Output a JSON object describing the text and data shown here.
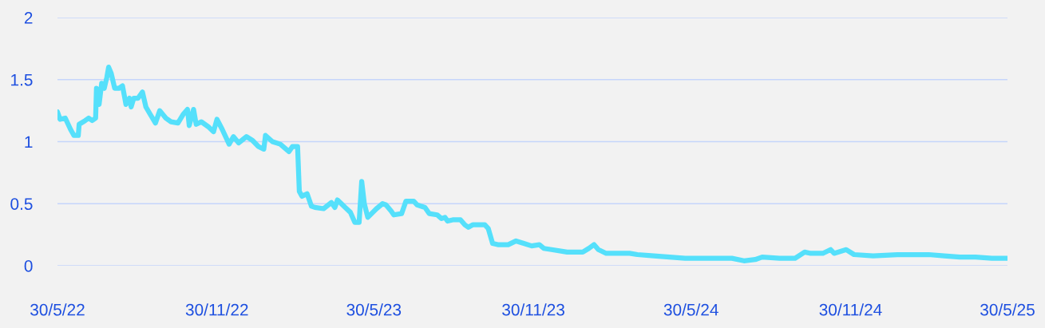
{
  "chart_data": {
    "type": "line",
    "x": [
      "2022-05-30",
      "2022-06-02",
      "2022-06-08",
      "2022-06-14",
      "2022-06-18",
      "2022-06-23",
      "2022-06-24",
      "2022-07-01",
      "2022-07-05",
      "2022-07-09",
      "2022-07-13",
      "2022-07-14",
      "2022-07-17",
      "2022-07-20",
      "2022-07-23",
      "2022-07-26",
      "2022-07-28",
      "2022-07-31",
      "2022-08-04",
      "2022-08-09",
      "2022-08-13",
      "2022-08-17",
      "2022-08-21",
      "2022-08-23",
      "2022-08-26",
      "2022-08-31",
      "2022-09-05",
      "2022-09-09",
      "2022-09-14",
      "2022-09-20",
      "2022-09-25",
      "2022-10-02",
      "2022-10-08",
      "2022-10-16",
      "2022-10-22",
      "2022-10-27",
      "2022-10-29",
      "2022-11-03",
      "2022-11-06",
      "2022-11-12",
      "2022-11-20",
      "2022-11-26",
      "2022-11-30",
      "2022-12-06",
      "2022-12-14",
      "2022-12-19",
      "2022-12-25",
      "2023-01-03",
      "2023-01-10",
      "2023-01-17",
      "2023-01-23",
      "2023-01-25",
      "2023-02-02",
      "2023-02-11",
      "2023-02-21",
      "2023-02-25",
      "2023-03-03",
      "2023-03-05",
      "2023-03-08",
      "2023-03-14",
      "2023-03-19",
      "2023-03-23",
      "2023-04-02",
      "2023-04-11",
      "2023-04-15",
      "2023-04-18",
      "2023-04-27",
      "2023-05-03",
      "2023-05-08",
      "2023-05-13",
      "2023-05-16",
      "2023-05-19",
      "2023-05-23",
      "2023-06-02",
      "2023-06-09",
      "2023-06-13",
      "2023-06-19",
      "2023-06-22",
      "2023-07-01",
      "2023-07-06",
      "2023-07-15",
      "2023-07-19",
      "2023-07-28",
      "2023-08-02",
      "2023-08-11",
      "2023-08-16",
      "2023-08-20",
      "2023-08-23",
      "2023-08-29",
      "2023-09-07",
      "2023-09-12",
      "2023-09-16",
      "2023-09-21",
      "2023-10-05",
      "2023-10-09",
      "2023-10-14",
      "2023-10-20",
      "2023-11-01",
      "2023-11-10",
      "2023-11-19",
      "2023-11-28",
      "2023-12-07",
      "2023-12-12",
      "2023-12-21",
      "2024-01-08",
      "2024-01-26",
      "2024-02-02",
      "2024-02-08",
      "2024-02-13",
      "2024-02-22",
      "2024-03-20",
      "2024-03-29",
      "2024-04-17",
      "2024-05-05",
      "2024-05-23",
      "2024-06-19",
      "2024-07-16",
      "2024-07-30",
      "2024-08-12",
      "2024-08-20",
      "2024-09-09",
      "2024-09-27",
      "2024-10-08",
      "2024-10-15",
      "2024-10-29",
      "2024-11-07",
      "2024-11-11",
      "2024-11-25",
      "2024-12-04",
      "2024-12-26",
      "2025-01-23",
      "2025-02-28",
      "2025-03-18",
      "2025-04-05",
      "2025-04-23",
      "2025-05-12",
      "2025-05-30"
    ],
    "series": [
      {
        "color": "#55e0fb",
        "values": [
          1.24,
          1.18,
          1.19,
          1.1,
          1.05,
          1.05,
          1.14,
          1.17,
          1.19,
          1.17,
          1.19,
          1.43,
          1.3,
          1.47,
          1.43,
          1.52,
          1.6,
          1.55,
          1.43,
          1.43,
          1.45,
          1.3,
          1.35,
          1.28,
          1.35,
          1.35,
          1.4,
          1.28,
          1.22,
          1.15,
          1.25,
          1.19,
          1.16,
          1.15,
          1.22,
          1.26,
          1.13,
          1.26,
          1.14,
          1.16,
          1.12,
          1.08,
          1.18,
          1.1,
          0.98,
          1.04,
          0.99,
          1.04,
          1.01,
          0.96,
          0.94,
          1.05,
          1.0,
          0.98,
          0.92,
          0.96,
          0.96,
          0.6,
          0.56,
          0.58,
          0.48,
          0.47,
          0.46,
          0.51,
          0.47,
          0.53,
          0.47,
          0.43,
          0.35,
          0.35,
          0.68,
          0.5,
          0.39,
          0.46,
          0.5,
          0.49,
          0.44,
          0.41,
          0.42,
          0.52,
          0.52,
          0.49,
          0.47,
          0.42,
          0.41,
          0.38,
          0.39,
          0.36,
          0.37,
          0.37,
          0.33,
          0.31,
          0.33,
          0.33,
          0.3,
          0.18,
          0.17,
          0.17,
          0.2,
          0.18,
          0.16,
          0.17,
          0.14,
          0.13,
          0.11,
          0.11,
          0.14,
          0.17,
          0.13,
          0.1,
          0.1,
          0.09,
          0.08,
          0.07,
          0.06,
          0.06,
          0.06,
          0.04,
          0.05,
          0.07,
          0.06,
          0.06,
          0.11,
          0.1,
          0.1,
          0.13,
          0.1,
          0.13,
          0.09,
          0.08,
          0.09,
          0.09,
          0.08,
          0.07,
          0.07,
          0.06,
          0.06
        ]
      }
    ],
    "xlim": [
      "2022-05-30",
      "2025-05-30"
    ],
    "xticks": [
      {
        "value": "2022-05-30",
        "label": "30/5/22"
      },
      {
        "value": "2022-11-30",
        "label": "30/11/22"
      },
      {
        "value": "2023-05-30",
        "label": "30/5/23"
      },
      {
        "value": "2023-11-30",
        "label": "30/11/23"
      },
      {
        "value": "2024-05-30",
        "label": "30/5/24"
      },
      {
        "value": "2024-11-30",
        "label": "30/11/24"
      },
      {
        "value": "2025-05-30",
        "label": "30/5/25"
      }
    ],
    "ylim": [
      0,
      2
    ],
    "yticks": [
      0,
      0.5,
      1,
      1.5,
      2
    ],
    "grid": "y",
    "marker": "none",
    "line_style": "solid",
    "legend": false
  }
}
